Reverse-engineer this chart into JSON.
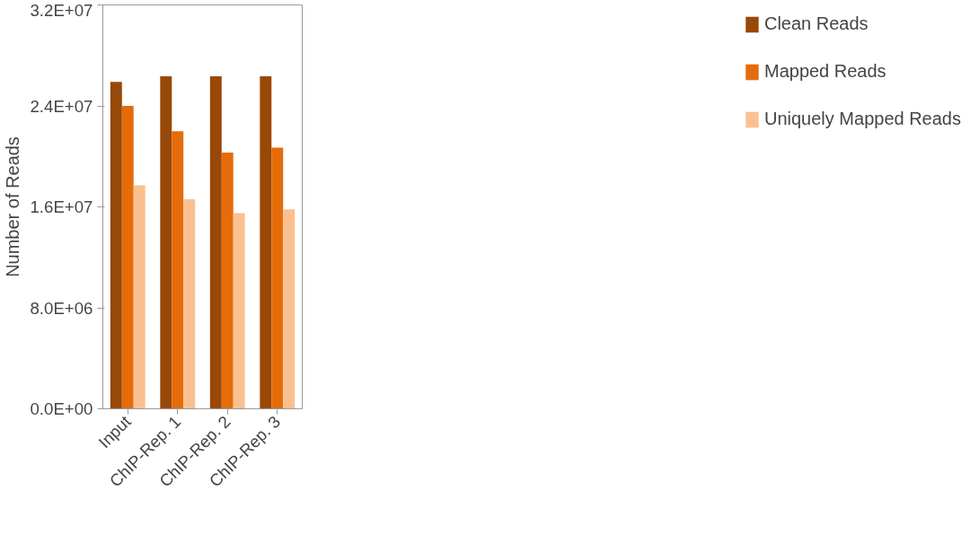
{
  "chart_data": {
    "type": "bar",
    "ylabel": "Number of Reads",
    "categories": [
      "Input",
      "ChIP-Rep. 1",
      "ChIP-Rep. 2",
      "ChIP-Rep. 3"
    ],
    "series": [
      {
        "name": "Clean Reads",
        "color": "#984807",
        "values": [
          25900000,
          26350000,
          26350000,
          26350000
        ]
      },
      {
        "name": "Mapped Reads",
        "color": "#e46c0a",
        "values": [
          24000000,
          22000000,
          20300000,
          20700000
        ]
      },
      {
        "name": "Uniquely Mapped Reads",
        "color": "#fac090",
        "values": [
          17700000,
          16600000,
          15500000,
          15800000
        ]
      }
    ],
    "ylim": [
      0,
      32000000
    ],
    "yticks": [
      {
        "value": 0,
        "label": "0.0E+00"
      },
      {
        "value": 8000000,
        "label": "8.0E+06"
      },
      {
        "value": 16000000,
        "label": "1.6E+07"
      },
      {
        "value": 24000000,
        "label": "2.4E+07"
      },
      {
        "value": 32000000,
        "label": "3.2E+07"
      }
    ],
    "grid": false,
    "legend": "right"
  }
}
